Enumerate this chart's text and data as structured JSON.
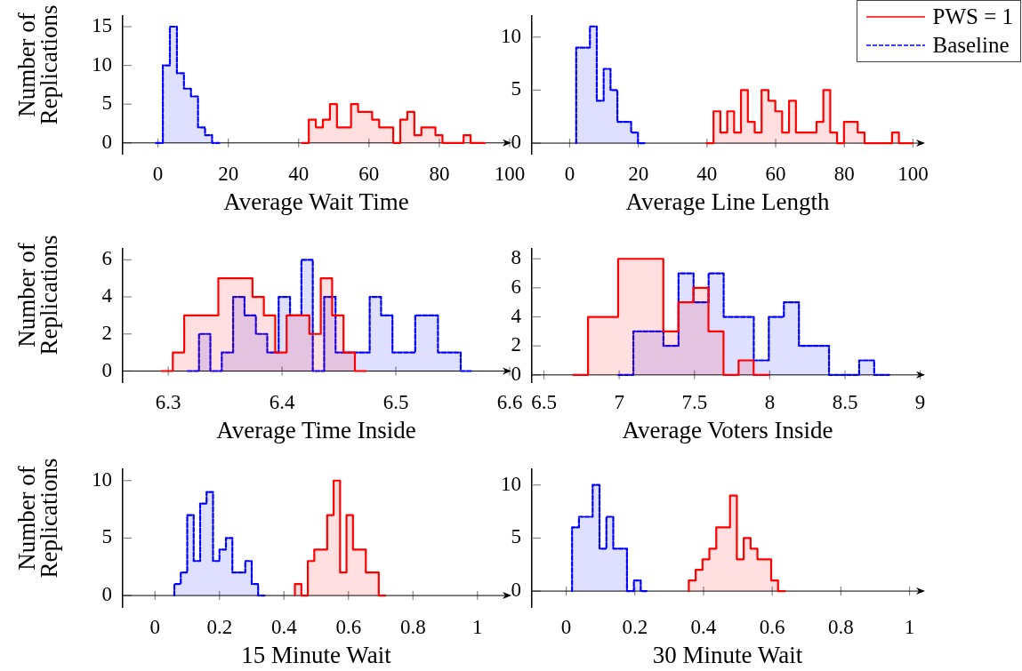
{
  "chart_data": [
    {
      "type": "step",
      "xlabel": "Average Wait Time",
      "ylabel": "Number of Replications",
      "xlim": [
        -10,
        100
      ],
      "xticks": [
        0,
        20,
        40,
        60,
        80,
        100
      ],
      "ylim": [
        -1.4,
        16.4
      ],
      "yticks": [
        0,
        5,
        10,
        15
      ],
      "series": [
        {
          "color": "#ff0000",
          "line_style": "solid",
          "x": [
            40.9,
            42.9,
            44.9,
            46.9,
            48.9,
            50.9,
            52.9,
            54.9,
            56.9,
            58.9,
            60.9,
            62.9,
            64.9,
            66.9,
            68.9,
            70.9,
            72.9,
            74.9,
            76.9,
            78.9,
            80.9,
            82.9,
            84.9,
            86.9,
            88.9,
            90.9,
            92.9
          ],
          "values": [
            0,
            0,
            3,
            2,
            3,
            5,
            2,
            2,
            5,
            4,
            4,
            3,
            2,
            2,
            0,
            3,
            4,
            1,
            2,
            2,
            1,
            0,
            0,
            0,
            1,
            0,
            0
          ]
        },
        {
          "color": "#0000ff",
          "line_style": "dashed",
          "x": [
            -0.6,
            1.4,
            3.4,
            5.4,
            7.4,
            9.4,
            11.4,
            13.4,
            15.4,
            17.4
          ],
          "values": [
            0,
            0,
            10,
            15,
            9,
            7,
            6,
            2,
            1,
            0
          ]
        }
      ]
    },
    {
      "type": "step",
      "xlabel": "Average Line Length",
      "xlim": [
        -11,
        103
      ],
      "xticks": [
        0,
        20,
        40,
        60,
        80,
        100
      ],
      "ylim": [
        -1,
        12
      ],
      "yticks": [
        0,
        5,
        10
      ],
      "legend": "top right",
      "series": [
        {
          "name": "PWS = 1",
          "color": "#ff0000",
          "line_style": "solid",
          "x": [
            39.9,
            41.9,
            43.9,
            45.9,
            47.9,
            49.9,
            51.9,
            53.9,
            55.9,
            57.9,
            59.9,
            61.9,
            63.9,
            65.9,
            67.9,
            69.9,
            71.9,
            73.9,
            75.9,
            77.9,
            79.9,
            81.9,
            83.9,
            85.9,
            87.9,
            89.9,
            91.9,
            93.9,
            95.9,
            97.9,
            99.9
          ],
          "values": [
            0,
            0,
            3,
            1,
            3,
            1,
            5,
            2,
            1,
            5,
            4,
            3,
            1,
            4,
            1,
            1,
            1,
            2,
            5,
            1,
            0,
            2,
            2,
            1,
            0,
            0,
            0,
            0,
            1,
            0,
            0
          ]
        },
        {
          "name": "Baseline",
          "color": "#0000ff",
          "line_style": "dashed",
          "x": [
            1.9,
            3.9,
            5.9,
            7.9,
            9.9,
            11.9,
            13.9,
            15.9,
            17.9,
            19.9,
            21.9
          ],
          "values": [
            0,
            9,
            9,
            11,
            4,
            7,
            5,
            2,
            2,
            1,
            0
          ]
        }
      ]
    },
    {
      "type": "step",
      "xlabel": "Average Time Inside",
      "ylabel": "Number of Replications",
      "xlim": [
        6.26,
        6.6
      ],
      "xticks": [
        6.3,
        6.4,
        6.5,
        6.6
      ],
      "ylim": [
        -0.6,
        6.6
      ],
      "yticks": [
        0,
        2,
        4,
        6
      ],
      "series": [
        {
          "color": "#ff0000",
          "line_style": "solid",
          "x": [
            6.294,
            6.304,
            6.314,
            6.324,
            6.334,
            6.344,
            6.354,
            6.364,
            6.374,
            6.384,
            6.394,
            6.404,
            6.414,
            6.424,
            6.434,
            6.444,
            6.454,
            6.464,
            6.474
          ],
          "values": [
            0,
            0,
            1,
            3,
            3,
            3,
            5,
            5,
            5,
            4,
            3,
            1,
            3,
            3,
            2,
            5,
            3,
            1,
            0
          ]
        },
        {
          "color": "#0000ff",
          "line_style": "dashed",
          "x": [
            6.317,
            6.327,
            6.337,
            6.347,
            6.357,
            6.367,
            6.377,
            6.387,
            6.397,
            6.407,
            6.417,
            6.427,
            6.437,
            6.447,
            6.457,
            6.467,
            6.477,
            6.487,
            6.497,
            6.507,
            6.517,
            6.527,
            6.537,
            6.547,
            6.557,
            6.567
          ],
          "values": [
            0,
            0,
            2,
            0,
            1,
            4,
            3,
            2,
            1,
            4,
            3,
            6,
            0,
            4,
            1,
            1,
            1,
            4,
            3,
            1,
            1,
            3,
            3,
            1,
            1,
            0
          ]
        }
      ]
    },
    {
      "type": "step",
      "xlabel": "Average Voters Inside",
      "xlim": [
        6.42,
        9.02
      ],
      "xticks": [
        6.5,
        7,
        7.5,
        8,
        8.5,
        9
      ],
      "ylim": [
        -0.5,
        8.7
      ],
      "yticks": [
        0,
        2,
        4,
        6,
        8
      ],
      "series": [
        {
          "color": "#ff0000",
          "line_style": "solid",
          "x": [
            6.693,
            6.793,
            6.893,
            6.993,
            7.093,
            7.193,
            7.293,
            7.393,
            7.493,
            7.593,
            7.693,
            7.793,
            7.893,
            7.993
          ],
          "values": [
            0,
            0,
            4,
            4,
            8,
            8,
            8,
            3,
            5,
            6,
            3,
            0,
            1,
            0
          ]
        },
        {
          "color": "#0000ff",
          "line_style": "dashed",
          "x": [
            6.994,
            7.094,
            7.194,
            7.294,
            7.394,
            7.494,
            7.594,
            7.694,
            7.794,
            7.894,
            7.994,
            8.094,
            8.194,
            8.294,
            8.394,
            8.494,
            8.594,
            8.694,
            8.794
          ],
          "values": [
            0,
            0,
            3,
            3,
            2,
            7,
            5,
            7,
            4,
            4,
            1,
            4,
            5,
            2,
            2,
            0,
            0,
            1,
            0
          ]
        }
      ]
    },
    {
      "type": "step",
      "xlabel": "15 Minute Wait",
      "ylabel": "Number of Replications",
      "xlim": [
        -0.1,
        1.1
      ],
      "xticks": [
        0,
        0.2,
        0.4,
        0.6,
        0.8,
        1
      ],
      "ylim": [
        -1,
        11
      ],
      "yticks": [
        0,
        5,
        10
      ],
      "series": [
        {
          "color": "#ff0000",
          "line_style": "solid",
          "x": [
            0.434,
            0.454,
            0.474,
            0.494,
            0.514,
            0.534,
            0.554,
            0.574,
            0.594,
            0.614,
            0.634,
            0.654,
            0.674,
            0.694,
            0.714
          ],
          "values": [
            0,
            1,
            0,
            3,
            4,
            4,
            7,
            10,
            2,
            7,
            4,
            4,
            2,
            2,
            0
          ]
        },
        {
          "color": "#0000ff",
          "line_style": "dashed",
          "x": [
            0.06,
            0.08,
            0.1,
            0.12,
            0.14,
            0.16,
            0.18,
            0.2,
            0.22,
            0.24,
            0.26,
            0.28,
            0.3,
            0.32,
            0.34
          ],
          "values": [
            0,
            1,
            2,
            7,
            3,
            8,
            9,
            3,
            4,
            5,
            2,
            2,
            3,
            1,
            0
          ]
        }
      ]
    },
    {
      "type": "step",
      "xlabel": "30 Minute Wait",
      "xlim": [
        -0.1,
        1.04
      ],
      "xticks": [
        0,
        0.2,
        0.4,
        0.6,
        0.8,
        1
      ],
      "ylim": [
        -1.5,
        11.5
      ],
      "yticks": [
        0,
        5,
        10
      ],
      "series": [
        {
          "color": "#ff0000",
          "line_style": "solid",
          "x": [
            0.357,
            0.377,
            0.397,
            0.417,
            0.437,
            0.457,
            0.477,
            0.497,
            0.517,
            0.537,
            0.557,
            0.577,
            0.597,
            0.617,
            0.637
          ],
          "values": [
            0,
            1,
            2,
            3,
            4,
            6,
            6,
            9,
            3,
            5,
            4,
            3,
            3,
            1,
            0
          ]
        },
        {
          "color": "#0000ff",
          "line_style": "dashed",
          "x": [
            0.017,
            0.037,
            0.057,
            0.077,
            0.097,
            0.117,
            0.137,
            0.157,
            0.177,
            0.197,
            0.217,
            0.237
          ],
          "values": [
            0,
            6,
            7,
            7,
            10,
            4,
            7,
            4,
            4,
            0,
            1,
            0
          ]
        }
      ]
    }
  ]
}
